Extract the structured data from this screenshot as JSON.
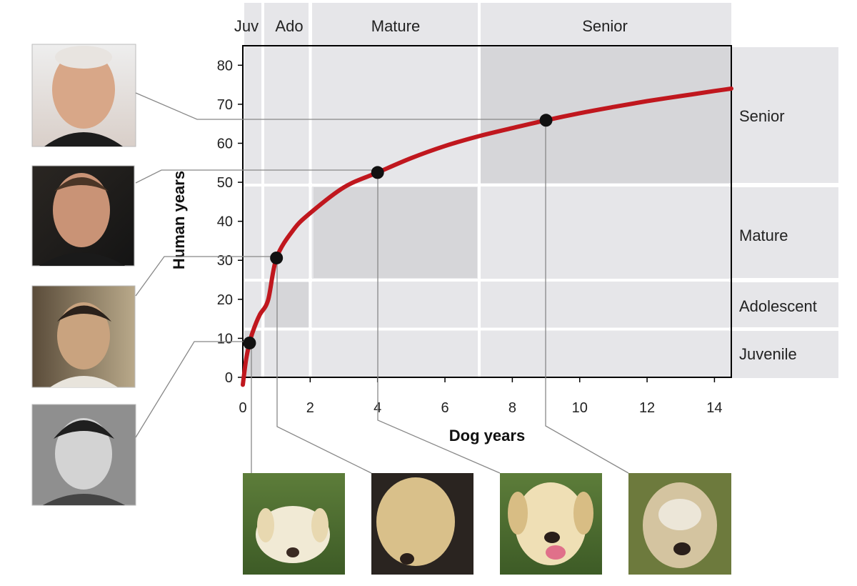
{
  "chart_data": {
    "type": "line",
    "xlabel": "Dog years",
    "ylabel": "Human years",
    "xlim": [
      0,
      14.5
    ],
    "ylim": [
      0,
      85
    ],
    "x_ticks": [
      0,
      2,
      4,
      6,
      8,
      10,
      12,
      14
    ],
    "y_ticks": [
      0,
      10,
      20,
      30,
      40,
      50,
      60,
      70,
      80
    ],
    "grid": false,
    "curve_color": "#c0171e",
    "series": [
      {
        "x": [
          0.0,
          0.1,
          0.2,
          0.3,
          0.5,
          0.75,
          1,
          1.5,
          2,
          3,
          4,
          5,
          6,
          7,
          8,
          9,
          10,
          11,
          12,
          13,
          14,
          14.5
        ],
        "y": [
          -1.9,
          4.7,
          8.8,
          11.8,
          16.0,
          19.8,
          30.6,
          37.8,
          42.1,
          48.7,
          52.5,
          56.2,
          59.3,
          61.8,
          63.9,
          65.9,
          67.7,
          69.3,
          70.8,
          72.1,
          73.4,
          74.0
        ]
      }
    ],
    "highlighted_points": [
      {
        "x": 0.2,
        "y": 8.8
      },
      {
        "x": 1,
        "y": 30.6
      },
      {
        "x": 4,
        "y": 52.5
      },
      {
        "x": 9,
        "y": 65.9
      }
    ],
    "dog_stages": [
      {
        "label": "Juv",
        "x_range": [
          0,
          0.5
        ],
        "y_range": [
          0,
          12.3
        ]
      },
      {
        "label": "Ado",
        "x_range": [
          0.5,
          2
        ],
        "y_range": [
          12.3,
          24.4
        ]
      },
      {
        "label": "Mature",
        "x_range": [
          2,
          7
        ],
        "y_range": [
          24.4,
          48.9
        ]
      },
      {
        "label": "Senior",
        "x_range": [
          7,
          14.5
        ],
        "y_range": [
          49.6,
          85
        ]
      }
    ],
    "human_stages": [
      {
        "label": "Senior"
      },
      {
        "label": "Mature"
      },
      {
        "label": "Adolescent"
      },
      {
        "label": "Juvenile"
      }
    ],
    "human_photos": [
      "man-senior-photo",
      "man-adult-photo",
      "teen-photo",
      "boy-photo"
    ],
    "dog_photos": [
      "puppy-photo",
      "young-dog-photo",
      "adult-dog-photo",
      "senior-dog-photo"
    ]
  }
}
